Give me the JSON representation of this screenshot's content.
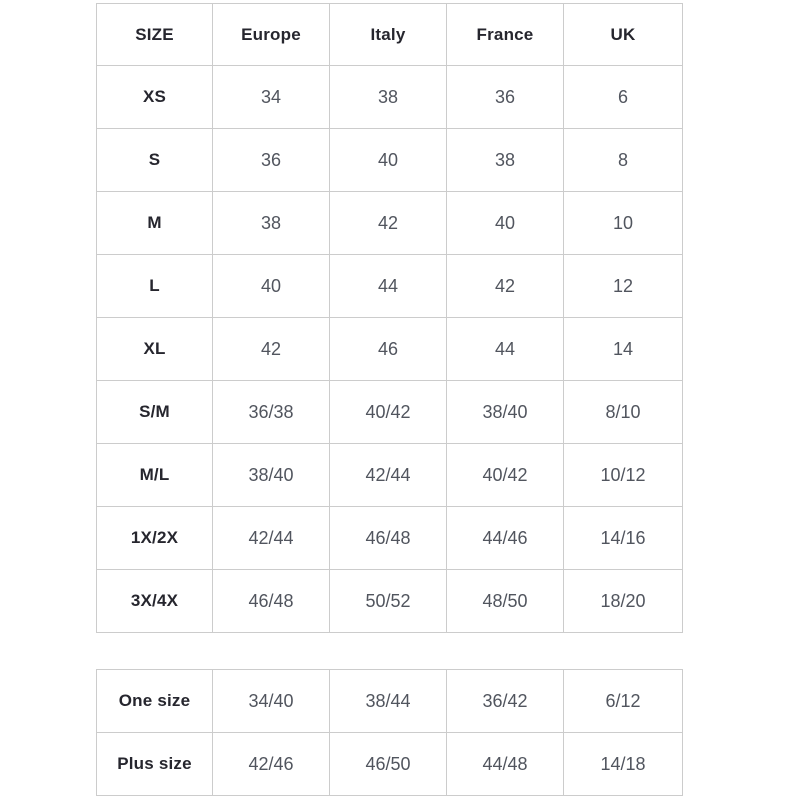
{
  "colors": {
    "background": "#ffffff",
    "border": "#cccccc",
    "header_text": "#26262e",
    "value_text": "#51555e"
  },
  "size_table": {
    "headers": [
      "SIZE",
      "Europe",
      "Italy",
      "France",
      "UK"
    ],
    "rows": [
      {
        "label": "XS",
        "values": [
          "34",
          "38",
          "36",
          "6"
        ]
      },
      {
        "label": "S",
        "values": [
          "36",
          "40",
          "38",
          "8"
        ]
      },
      {
        "label": "M",
        "values": [
          "38",
          "42",
          "40",
          "10"
        ]
      },
      {
        "label": "L",
        "values": [
          "40",
          "44",
          "42",
          "12"
        ]
      },
      {
        "label": "XL",
        "values": [
          "42",
          "46",
          "44",
          "14"
        ]
      },
      {
        "label": "S/M",
        "values": [
          "36/38",
          "40/42",
          "38/40",
          "8/10"
        ]
      },
      {
        "label": "M/L",
        "values": [
          "38/40",
          "42/44",
          "40/42",
          "10/12"
        ]
      },
      {
        "label": "1X/2X",
        "values": [
          "42/44",
          "46/48",
          "44/46",
          "14/16"
        ]
      },
      {
        "label": "3X/4X",
        "values": [
          "46/48",
          "50/52",
          "48/50",
          "18/20"
        ]
      }
    ]
  },
  "extra_table": {
    "rows": [
      {
        "label": "One size",
        "values": [
          "34/40",
          "38/44",
          "36/42",
          "6/12"
        ]
      },
      {
        "label": "Plus size",
        "values": [
          "42/46",
          "46/50",
          "44/48",
          "14/18"
        ]
      }
    ]
  }
}
